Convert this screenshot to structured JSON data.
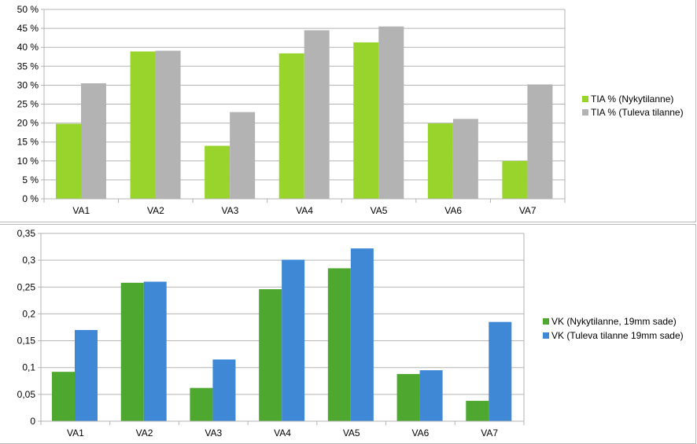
{
  "chart_data": [
    {
      "type": "bar",
      "categories": [
        "VA1",
        "VA2",
        "VA3",
        "VA4",
        "VA5",
        "VA6",
        "VA7"
      ],
      "series": [
        {
          "name": "TIA % (Nykytilanne)",
          "color": "#99d42c",
          "values": [
            19.8,
            38.9,
            14.0,
            38.4,
            41.3,
            19.9,
            10.0
          ]
        },
        {
          "name": "TIA % (Tuleva tilanne)",
          "color": "#b3b3b3",
          "values": [
            30.5,
            39.1,
            22.9,
            44.5,
            45.5,
            21.1,
            30.2
          ]
        }
      ],
      "yticks": [
        "0 %",
        "5 %",
        "10 %",
        "15 %",
        "20 %",
        "25 %",
        "30 %",
        "35 %",
        "40 %",
        "45 %",
        "50 %"
      ],
      "ylim": [
        0,
        50
      ],
      "grid": true,
      "legend": "right"
    },
    {
      "type": "bar",
      "categories": [
        "VA1",
        "VA2",
        "VA3",
        "VA4",
        "VA5",
        "VA6",
        "VA7"
      ],
      "series": [
        {
          "name": "VK (Nykytilanne, 19mm sade)",
          "color": "#4ea72e",
          "values": [
            0.092,
            0.258,
            0.062,
            0.246,
            0.285,
            0.088,
            0.038
          ]
        },
        {
          "name": "VK (Tuleva tilanne 19mm sade)",
          "color": "#3f88d6",
          "values": [
            0.17,
            0.26,
            0.115,
            0.301,
            0.322,
            0.095,
            0.185
          ]
        }
      ],
      "yticks": [
        "0",
        "0,05",
        "0,1",
        "0,15",
        "0,2",
        "0,25",
        "0,3",
        "0,35"
      ],
      "ylim": [
        0,
        0.35
      ],
      "grid": true,
      "legend": "right"
    }
  ]
}
